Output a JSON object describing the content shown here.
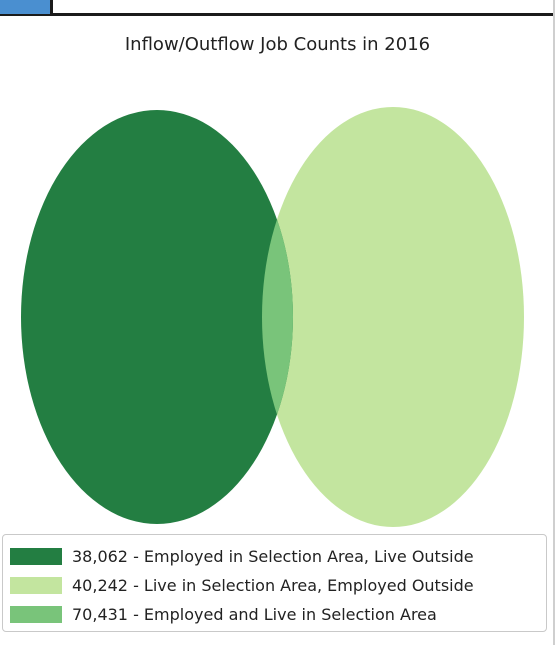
{
  "chart_data": {
    "type": "venn",
    "title": "Inflow/Outflow Job Counts in 2016",
    "sets": [
      {
        "value": 38062,
        "label": "38,062 - Employed in Selection Area, Live Outside",
        "color": "#237e42"
      },
      {
        "value": 40242,
        "label": "40,242 - Live in Selection Area, Employed Outside",
        "color": "#c3e59f"
      },
      {
        "value": 70431,
        "label": "70,431 - Employed and Live in Selection Area",
        "color": "#79c47a"
      }
    ],
    "legend_position": "bottom"
  }
}
